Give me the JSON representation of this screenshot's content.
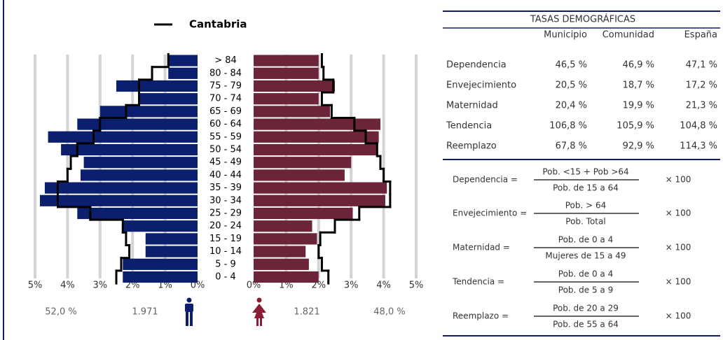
{
  "chart_data": {
    "type": "pyramid",
    "categories": [
      "0 - 4",
      "5 - 9",
      "10 - 14",
      "15 - 19",
      "20 - 24",
      "25 - 29",
      "30 - 34",
      "35 - 39",
      "40 - 44",
      "45 - 49",
      "50 - 54",
      "55 - 59",
      "60 - 64",
      "65 - 69",
      "70 - 74",
      "75 - 79",
      "80 - 84",
      "> 84"
    ],
    "bars": [
      {
        "color": "#0c1f6e",
        "values": [
          2.3,
          2.3,
          1.6,
          1.6,
          2.3,
          3.7,
          4.85,
          4.7,
          3.6,
          3.5,
          4.2,
          4.6,
          3.7,
          3.0,
          1.8,
          2.5,
          0.9,
          0.9
        ]
      },
      {
        "color": "#6b2438",
        "values": [
          2.0,
          1.7,
          1.6,
          1.95,
          1.8,
          3.05,
          4.05,
          4.1,
          2.8,
          3.0,
          3.8,
          3.85,
          3.9,
          2.35,
          2.0,
          2.5,
          2.0,
          2.0
        ]
      }
    ],
    "reference": {
      "name": "Cantabria",
      "color": "#000000",
      "series": [
        [
          2.5,
          2.35,
          2.1,
          2.2,
          2.3,
          3.3,
          4.3,
          4.3,
          4.0,
          3.9,
          3.7,
          3.2,
          3.0,
          2.2,
          1.8,
          1.8,
          1.4,
          0.9
        ],
        [
          2.3,
          2.1,
          2.0,
          2.05,
          2.5,
          3.25,
          4.2,
          4.2,
          4.0,
          3.9,
          3.8,
          3.45,
          3.1,
          2.4,
          2.1,
          2.45,
          2.15,
          2.1
        ]
      ]
    },
    "xlim": [
      0,
      5
    ],
    "xticks": [
      {
        "value": 0,
        "label": "0%"
      },
      {
        "value": 1,
        "label": "1%"
      },
      {
        "value": 2,
        "label": "2%"
      },
      {
        "value": 3,
        "label": "3%"
      },
      {
        "value": 4,
        "label": "4%"
      },
      {
        "value": 5,
        "label": "5%"
      }
    ],
    "grid": true,
    "totals": [
      {
        "percent": "52,0 %",
        "count": "1.971"
      },
      {
        "percent": "48,0 %",
        "count": "1.821"
      }
    ]
  },
  "rates": {
    "title": "TASAS DEMOGRÁFICAS",
    "columns": [
      "Municipio",
      "Comunidad",
      "España"
    ],
    "rows": [
      {
        "label": "Dependencia",
        "values": [
          "46,5 %",
          "46,9 %",
          "47,1 %"
        ]
      },
      {
        "label": "Envejecimiento",
        "values": [
          "20,5 %",
          "18,7 %",
          "17,2 %"
        ]
      },
      {
        "label": "Maternidad",
        "values": [
          "20,4 %",
          "19,9 %",
          "21,3 %"
        ]
      },
      {
        "label": "Tendencia",
        "values": [
          "106,8 %",
          "105,9 %",
          "104,8 %"
        ]
      },
      {
        "label": "Reemplazo",
        "values": [
          "67,8 %",
          "92,9 %",
          "114,3 %"
        ]
      }
    ]
  },
  "formulas": [
    {
      "label": "Dependencia =",
      "numerator": "Pob. <15 + Pob >64",
      "denominator": "Pob. de 15 a 64",
      "factor": "× 100"
    },
    {
      "label": "Envejecimiento =",
      "numerator": "Pob. > 64",
      "denominator": "Pob. Total",
      "factor": "× 100"
    },
    {
      "label": "Maternidad =",
      "numerator": "Pob. de 0 a 4",
      "denominator": "Mujeres de 15 a 49",
      "factor": "× 100"
    },
    {
      "label": "Tendencia =",
      "numerator": "Pob. de 0 a 4",
      "denominator": "Pob. de 5 a 9",
      "factor": "× 100"
    },
    {
      "label": "Reemplazo =",
      "numerator": "Pob. de 20 a 29",
      "denominator": "Pob. de 55 a 64",
      "factor": "× 100"
    }
  ]
}
